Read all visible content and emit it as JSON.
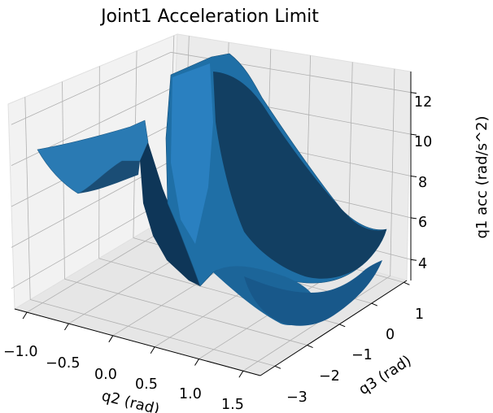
{
  "chart_data": {
    "type": "surface3d",
    "title": "Joint1 Acceleration Limit",
    "xlabel": "q2 (rad)",
    "ylabel": "q3 (rad)",
    "zlabel": "q1 acc (rad/s^2)",
    "x_ticks": [
      "−1.0",
      "−0.5",
      "0.0",
      "0.5",
      "1.0",
      "1.5"
    ],
    "y_ticks": [
      "−3",
      "−2",
      "−1",
      "0",
      "1"
    ],
    "z_ticks": [
      "4",
      "6",
      "8",
      "10",
      "12"
    ],
    "xlim": [
      -1.2,
      1.7
    ],
    "ylim": [
      -3.2,
      1.6
    ],
    "zlim": [
      3.0,
      13.0
    ],
    "grid": true,
    "colors": {
      "surface": "#1f77b4",
      "pane": "#f2f2f2",
      "grid": "#b0b0b0"
    },
    "surface_profile": {
      "x": [
        -1.2,
        -1.0,
        -0.8,
        -0.6,
        -0.4,
        -0.2,
        0.0,
        0.2,
        0.4,
        0.6,
        0.8,
        1.0,
        1.2,
        1.4,
        1.6
      ],
      "z_min": [
        7.5,
        6.2,
        5.2,
        4.8,
        4.0,
        3.5,
        3.2,
        3.3,
        3.6,
        3.2,
        3.4,
        4.0,
        5.0,
        6.1,
        6.5
      ],
      "z_max": [
        8.4,
        8.8,
        9.3,
        9.8,
        10.1,
        9.2,
        11.5,
        12.6,
        12.3,
        11.6,
        10.8,
        9.4,
        8.3,
        7.3,
        6.6
      ]
    }
  }
}
